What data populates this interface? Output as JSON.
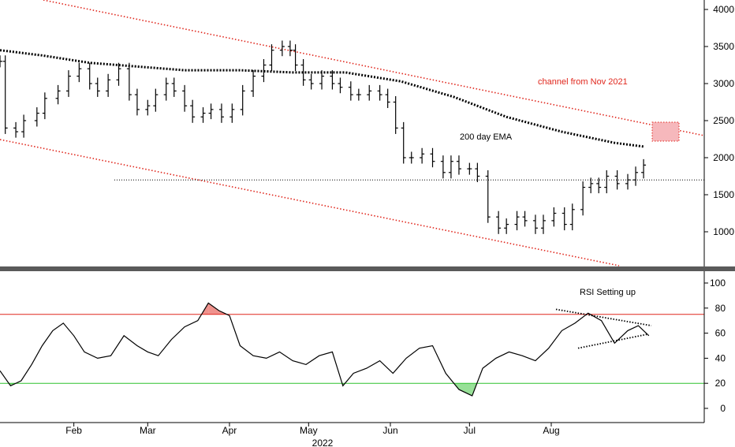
{
  "chart_data": [
    {
      "type": "ohlc",
      "series": [
        {
          "name": "",
          "points": [
            {
              "x": "2022-01-04",
              "y": 3300
            },
            {
              "x": "2022-01-06",
              "y": 2400
            },
            {
              "x": "2022-01-10",
              "y": 2350
            },
            {
              "x": "2022-01-13",
              "y": 2500
            },
            {
              "x": "2022-01-18",
              "y": 2600
            },
            {
              "x": "2022-01-21",
              "y": 2800
            },
            {
              "x": "2022-01-26",
              "y": 2900
            },
            {
              "x": "2022-01-30",
              "y": 3100
            },
            {
              "x": "2022-02-03",
              "y": 3200
            },
            {
              "x": "2022-02-07",
              "y": 3000
            },
            {
              "x": "2022-02-10",
              "y": 2900
            },
            {
              "x": "2022-02-14",
              "y": 3050
            },
            {
              "x": "2022-02-18",
              "y": 3200
            },
            {
              "x": "2022-02-22",
              "y": 2850
            },
            {
              "x": "2022-02-25",
              "y": 2650
            },
            {
              "x": "2022-03-01",
              "y": 2700
            },
            {
              "x": "2022-03-04",
              "y": 2850
            },
            {
              "x": "2022-03-08",
              "y": 3000
            },
            {
              "x": "2022-03-11",
              "y": 2900
            },
            {
              "x": "2022-03-15",
              "y": 2700
            },
            {
              "x": "2022-03-18",
              "y": 2550
            },
            {
              "x": "2022-03-22",
              "y": 2600
            },
            {
              "x": "2022-03-25",
              "y": 2650
            },
            {
              "x": "2022-03-29",
              "y": 2550
            },
            {
              "x": "2022-04-02",
              "y": 2650
            },
            {
              "x": "2022-04-06",
              "y": 2900
            },
            {
              "x": "2022-04-10",
              "y": 3100
            },
            {
              "x": "2022-04-14",
              "y": 3250
            },
            {
              "x": "2022-04-17",
              "y": 3450
            },
            {
              "x": "2022-04-21",
              "y": 3500
            },
            {
              "x": "2022-04-24",
              "y": 3450
            },
            {
              "x": "2022-04-26",
              "y": 3250
            },
            {
              "x": "2022-04-29",
              "y": 3050
            },
            {
              "x": "2022-05-02",
              "y": 3000
            },
            {
              "x": "2022-05-06",
              "y": 3100
            },
            {
              "x": "2022-05-10",
              "y": 3000
            },
            {
              "x": "2022-05-13",
              "y": 2950
            },
            {
              "x": "2022-05-17",
              "y": 2850
            },
            {
              "x": "2022-05-20",
              "y": 2850
            },
            {
              "x": "2022-05-24",
              "y": 2900
            },
            {
              "x": "2022-05-28",
              "y": 2850
            },
            {
              "x": "2022-05-31",
              "y": 2750
            },
            {
              "x": "2022-06-03",
              "y": 2400
            },
            {
              "x": "2022-06-06",
              "y": 2000
            },
            {
              "x": "2022-06-09",
              "y": 2000
            },
            {
              "x": "2022-06-13",
              "y": 2050
            },
            {
              "x": "2022-06-17",
              "y": 1950
            },
            {
              "x": "2022-06-21",
              "y": 1800
            },
            {
              "x": "2022-06-24",
              "y": 1950
            },
            {
              "x": "2022-06-27",
              "y": 1850
            },
            {
              "x": "2022-07-01",
              "y": 1850
            },
            {
              "x": "2022-07-04",
              "y": 1750
            },
            {
              "x": "2022-07-08",
              "y": 1200
            },
            {
              "x": "2022-07-12",
              "y": 1050
            },
            {
              "x": "2022-07-15",
              "y": 1100
            },
            {
              "x": "2022-07-19",
              "y": 1200
            },
            {
              "x": "2022-07-22",
              "y": 1150
            },
            {
              "x": "2022-07-26",
              "y": 1050
            },
            {
              "x": "2022-07-29",
              "y": 1150
            },
            {
              "x": "2022-08-02",
              "y": 1250
            },
            {
              "x": "2022-08-06",
              "y": 1100
            },
            {
              "x": "2022-08-09",
              "y": 1300
            },
            {
              "x": "2022-08-13",
              "y": 1600
            },
            {
              "x": "2022-08-16",
              "y": 1650
            },
            {
              "x": "2022-08-19",
              "y": 1600
            },
            {
              "x": "2022-08-22",
              "y": 1750
            },
            {
              "x": "2022-08-26",
              "y": 1650
            },
            {
              "x": "2022-08-30",
              "y": 1700
            },
            {
              "x": "2022-09-02",
              "y": 1800
            },
            {
              "x": "2022-09-05",
              "y": 1900
            }
          ]
        },
        {
          "name": "200 day EMA",
          "style": "dotted-thick",
          "points": [
            {
              "x": "2022-01-04",
              "y": 3450
            },
            {
              "x": "2022-01-20",
              "y": 3380
            },
            {
              "x": "2022-02-07",
              "y": 3280
            },
            {
              "x": "2022-02-25",
              "y": 3230
            },
            {
              "x": "2022-03-15",
              "y": 3180
            },
            {
              "x": "2022-04-05",
              "y": 3180
            },
            {
              "x": "2022-04-25",
              "y": 3150
            },
            {
              "x": "2022-05-15",
              "y": 3150
            },
            {
              "x": "2022-06-05",
              "y": 3030
            },
            {
              "x": "2022-06-25",
              "y": 2820
            },
            {
              "x": "2022-07-15",
              "y": 2550
            },
            {
              "x": "2022-08-05",
              "y": 2350
            },
            {
              "x": "2022-08-25",
              "y": 2200
            },
            {
              "x": "2022-09-05",
              "y": 2150
            }
          ]
        }
      ],
      "y_ticks": [
        1000,
        1500,
        2000,
        2500,
        3000,
        3500,
        4000
      ],
      "ylim": [
        500,
        4100
      ],
      "channel_line_color": "#e0261c",
      "horizontal_level": 1700,
      "target_box_color": "#f6b8bc",
      "annotations": [
        "channel from Nov 2021",
        "200 day EMA"
      ]
    },
    {
      "type": "line",
      "series": [
        {
          "name": "",
          "points": [
            {
              "x": "2022-01-04",
              "y": 30
            },
            {
              "x": "2022-01-08",
              "y": 18
            },
            {
              "x": "2022-01-12",
              "y": 22
            },
            {
              "x": "2022-01-16",
              "y": 35
            },
            {
              "x": "2022-01-20",
              "y": 50
            },
            {
              "x": "2022-01-24",
              "y": 62
            },
            {
              "x": "2022-01-28",
              "y": 68
            },
            {
              "x": "2022-02-01",
              "y": 58
            },
            {
              "x": "2022-02-05",
              "y": 45
            },
            {
              "x": "2022-02-10",
              "y": 40
            },
            {
              "x": "2022-02-15",
              "y": 42
            },
            {
              "x": "2022-02-20",
              "y": 58
            },
            {
              "x": "2022-02-25",
              "y": 50
            },
            {
              "x": "2022-03-01",
              "y": 45
            },
            {
              "x": "2022-03-05",
              "y": 42
            },
            {
              "x": "2022-03-10",
              "y": 55
            },
            {
              "x": "2022-03-15",
              "y": 65
            },
            {
              "x": "2022-03-20",
              "y": 70
            },
            {
              "x": "2022-03-24",
              "y": 84
            },
            {
              "x": "2022-03-28",
              "y": 78
            },
            {
              "x": "2022-04-01",
              "y": 74
            },
            {
              "x": "2022-04-05",
              "y": 50
            },
            {
              "x": "2022-04-10",
              "y": 42
            },
            {
              "x": "2022-04-15",
              "y": 40
            },
            {
              "x": "2022-04-20",
              "y": 45
            },
            {
              "x": "2022-04-25",
              "y": 38
            },
            {
              "x": "2022-04-30",
              "y": 35
            },
            {
              "x": "2022-05-05",
              "y": 42
            },
            {
              "x": "2022-05-10",
              "y": 45
            },
            {
              "x": "2022-05-14",
              "y": 18
            },
            {
              "x": "2022-05-18",
              "y": 28
            },
            {
              "x": "2022-05-23",
              "y": 32
            },
            {
              "x": "2022-05-28",
              "y": 38
            },
            {
              "x": "2022-06-02",
              "y": 28
            },
            {
              "x": "2022-06-07",
              "y": 40
            },
            {
              "x": "2022-06-12",
              "y": 48
            },
            {
              "x": "2022-06-17",
              "y": 50
            },
            {
              "x": "2022-06-22",
              "y": 28
            },
            {
              "x": "2022-06-27",
              "y": 15
            },
            {
              "x": "2022-07-02",
              "y": 10
            },
            {
              "x": "2022-07-06",
              "y": 32
            },
            {
              "x": "2022-07-11",
              "y": 40
            },
            {
              "x": "2022-07-16",
              "y": 45
            },
            {
              "x": "2022-07-21",
              "y": 42
            },
            {
              "x": "2022-07-26",
              "y": 38
            },
            {
              "x": "2022-07-31",
              "y": 48
            },
            {
              "x": "2022-08-05",
              "y": 62
            },
            {
              "x": "2022-08-10",
              "y": 68
            },
            {
              "x": "2022-08-15",
              "y": 76
            },
            {
              "x": "2022-08-20",
              "y": 70
            },
            {
              "x": "2022-08-25",
              "y": 52
            },
            {
              "x": "2022-08-30",
              "y": 62
            },
            {
              "x": "2022-09-03",
              "y": 66
            },
            {
              "x": "2022-09-07",
              "y": 58
            }
          ]
        }
      ],
      "y_ticks": [
        0,
        20,
        40,
        60,
        80,
        100
      ],
      "ylim": [
        -10,
        110
      ],
      "overbought": 75,
      "oversold": 20,
      "overbought_color": "#e0261c",
      "oversold_color": "#2fc22f",
      "annotations": [
        "RSI Setting up"
      ]
    }
  ],
  "shared_x": {
    "xlim": [
      "2022-01-04",
      "2022-09-28"
    ],
    "ticks": [
      {
        "label": "Feb",
        "x": "2022-02-01"
      },
      {
        "label": "Mar",
        "x": "2022-03-01"
      },
      {
        "label": "Apr",
        "x": "2022-04-01"
      },
      {
        "label": "May",
        "x": "2022-05-01"
      },
      {
        "label": "Jun",
        "x": "2022-06-01"
      },
      {
        "label": "Jul",
        "x": "2022-07-01"
      },
      {
        "label": "Aug",
        "x": "2022-08-01"
      }
    ],
    "year": "2022"
  }
}
